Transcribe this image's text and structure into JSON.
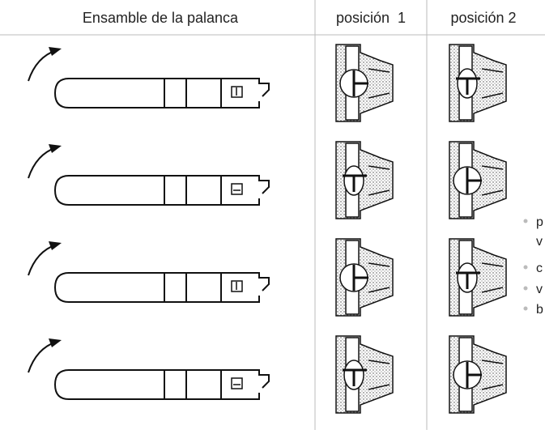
{
  "table": {
    "headers": [
      "Ensamble de la palanca",
      "posición  1",
      "posición 2"
    ]
  },
  "list": {
    "items": [
      "p",
      "v",
      "c",
      "v",
      "b"
    ]
  }
}
